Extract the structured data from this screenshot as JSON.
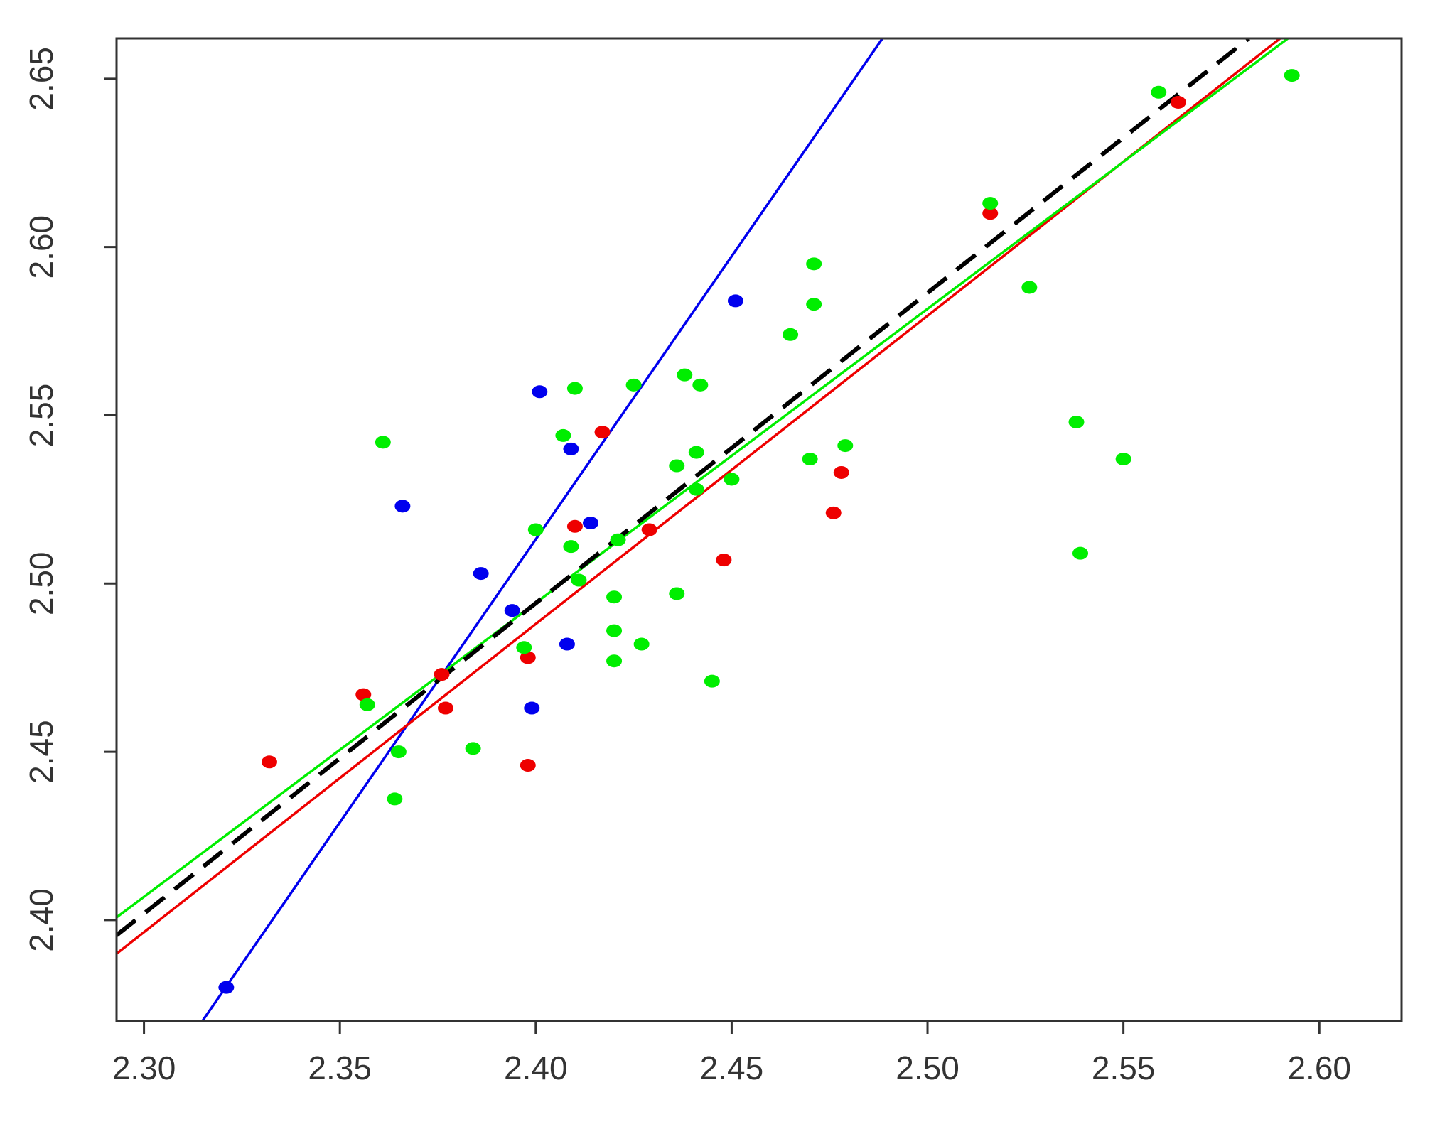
{
  "chart_data": {
    "type": "scatter",
    "xlim": [
      2.293,
      2.621
    ],
    "ylim": [
      2.37,
      2.662
    ],
    "xticks": [
      {
        "value": 2.3,
        "label": "2.30"
      },
      {
        "value": 2.35,
        "label": "2.35"
      },
      {
        "value": 2.4,
        "label": "2.40"
      },
      {
        "value": 2.45,
        "label": "2.45"
      },
      {
        "value": 2.5,
        "label": "2.50"
      },
      {
        "value": 2.55,
        "label": "2.55"
      },
      {
        "value": 2.6,
        "label": "2.60"
      }
    ],
    "yticks": [
      {
        "value": 2.4,
        "label": "2.40"
      },
      {
        "value": 2.45,
        "label": "2.45"
      },
      {
        "value": 2.5,
        "label": "2.50"
      },
      {
        "value": 2.55,
        "label": "2.55"
      },
      {
        "value": 2.6,
        "label": "2.60"
      },
      {
        "value": 2.65,
        "label": "2.65"
      }
    ],
    "series": [
      {
        "color": "#0000ee",
        "x": [
          2.321,
          2.366,
          2.386,
          2.394,
          2.401,
          2.399,
          2.409,
          2.408,
          2.414,
          2.451
        ],
        "y": [
          2.38,
          2.523,
          2.503,
          2.492,
          2.557,
          2.463,
          2.54,
          2.482,
          2.518,
          2.584
        ]
      },
      {
        "color": "#ee0000",
        "x": [
          2.332,
          2.356,
          2.376,
          2.377,
          2.398,
          2.398,
          2.41,
          2.417,
          2.429,
          2.448,
          2.476,
          2.478,
          2.516,
          2.564
        ],
        "y": [
          2.447,
          2.467,
          2.473,
          2.463,
          2.478,
          2.446,
          2.517,
          2.545,
          2.516,
          2.507,
          2.521,
          2.533,
          2.61,
          2.643
        ]
      },
      {
        "color": "#00ee00",
        "x": [
          2.357,
          2.361,
          2.365,
          2.364,
          2.384,
          2.397,
          2.4,
          2.407,
          2.41,
          2.409,
          2.411,
          2.42,
          2.42,
          2.42,
          2.421,
          2.425,
          2.427,
          2.436,
          2.436,
          2.438,
          2.441,
          2.442,
          2.441,
          2.445,
          2.45,
          2.465,
          2.471,
          2.471,
          2.47,
          2.479,
          2.516,
          2.526,
          2.538,
          2.539,
          2.55,
          2.559,
          2.593
        ],
        "y": [
          2.464,
          2.542,
          2.45,
          2.436,
          2.451,
          2.481,
          2.516,
          2.544,
          2.558,
          2.511,
          2.501,
          2.496,
          2.486,
          2.477,
          2.513,
          2.559,
          2.482,
          2.497,
          2.535,
          2.562,
          2.539,
          2.559,
          2.528,
          2.471,
          2.531,
          2.574,
          2.595,
          2.583,
          2.537,
          2.541,
          2.613,
          2.588,
          2.548,
          2.509,
          2.537,
          2.646,
          2.651
        ]
      }
    ],
    "lines": [
      {
        "color": "#0000ee",
        "dashed": false,
        "x": [
          2.3149,
          2.4885
        ],
        "y": [
          2.37,
          2.662
        ]
      },
      {
        "color": "#ee0000",
        "dashed": false,
        "x": [
          2.293,
          2.59
        ],
        "y": [
          2.39,
          2.662
        ]
      },
      {
        "color": "#00ee00",
        "dashed": false,
        "x": [
          2.293,
          2.592
        ],
        "y": [
          2.4008,
          2.662
        ]
      },
      {
        "color": "#000000",
        "dashed": true,
        "x": [
          2.293,
          2.582
        ],
        "y": [
          2.3955,
          2.662
        ]
      }
    ]
  }
}
